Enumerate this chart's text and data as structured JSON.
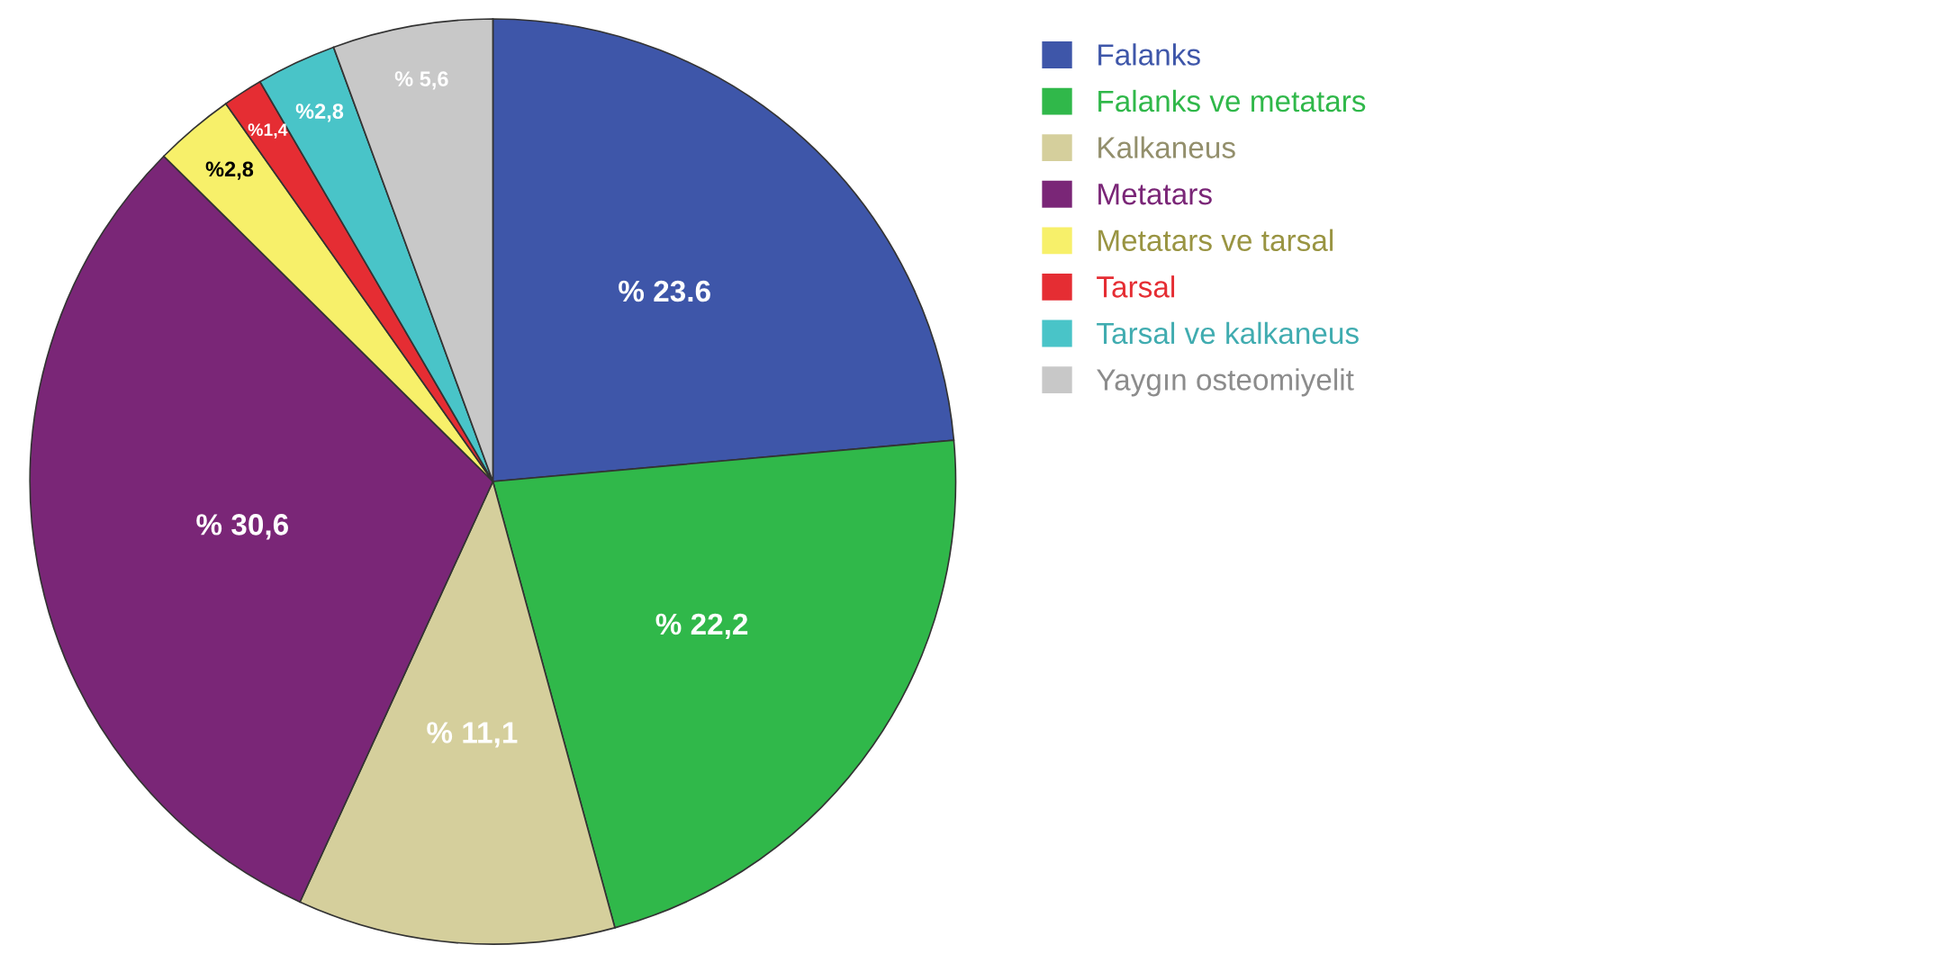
{
  "chart_data": {
    "type": "pie",
    "categories": [
      "Falanks",
      "Falanks ve metatars",
      "Kalkaneus",
      "Metatars",
      "Metatars ve tarsal",
      "Tarsal",
      "Tarsal ve kalkaneus",
      "Yaygın osteomiyelit"
    ],
    "values": [
      23.6,
      22.2,
      11.1,
      30.6,
      2.8,
      1.4,
      2.8,
      5.6
    ],
    "value_labels": [
      "% 23.6",
      "% 22,2",
      "% 11,1",
      "% 30,6",
      "%2,8",
      "%1,4",
      "%2,8",
      "% 5,6"
    ],
    "colors": [
      "#3e56a9",
      "#30b84a",
      "#d5cf9c",
      "#7a2677",
      "#f7f06a",
      "#e52d33",
      "#49c4c8",
      "#c8c8c8"
    ],
    "legend": "top right"
  }
}
